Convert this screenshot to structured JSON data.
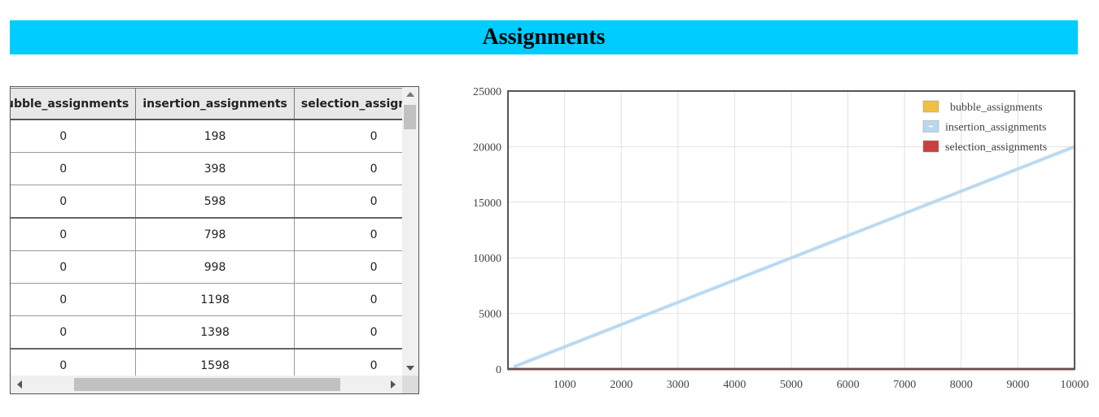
{
  "page": {
    "title": "Assignments"
  },
  "table": {
    "columns": [
      "bubble_assignments",
      "insertion_assignments",
      "selection_assignments"
    ],
    "rows": [
      [
        "0",
        "198",
        "0"
      ],
      [
        "0",
        "398",
        "0"
      ],
      [
        "0",
        "598",
        "0"
      ],
      [
        "0",
        "798",
        "0"
      ],
      [
        "0",
        "998",
        "0"
      ],
      [
        "0",
        "1198",
        "0"
      ],
      [
        "0",
        "1398",
        "0"
      ],
      [
        "0",
        "1598",
        "0"
      ]
    ]
  },
  "chart_data": {
    "type": "line",
    "title": "",
    "xlabel": "",
    "ylabel": "",
    "xlim": [
      0,
      10000
    ],
    "ylim": [
      0,
      25000
    ],
    "x_ticks": [
      "1000",
      "2000",
      "3000",
      "4000",
      "5000",
      "6000",
      "7000",
      "8000",
      "9000",
      "10000"
    ],
    "y_ticks": [
      "0",
      "5000",
      "10000",
      "15000",
      "20000",
      "25000"
    ],
    "grid": true,
    "legend_position": "top-right",
    "series": [
      {
        "name": "bubble_assignments",
        "color": "#f0c040",
        "x": [
          0,
          10000
        ],
        "y": [
          0,
          0
        ]
      },
      {
        "name": "insertion_assignments",
        "color": "#b8d8f0",
        "x": [
          100,
          10000
        ],
        "y": [
          198,
          19998
        ]
      },
      {
        "name": "selection_assignments",
        "color": "#c84040",
        "x": [
          0,
          10000
        ],
        "y": [
          0,
          0
        ]
      }
    ]
  }
}
